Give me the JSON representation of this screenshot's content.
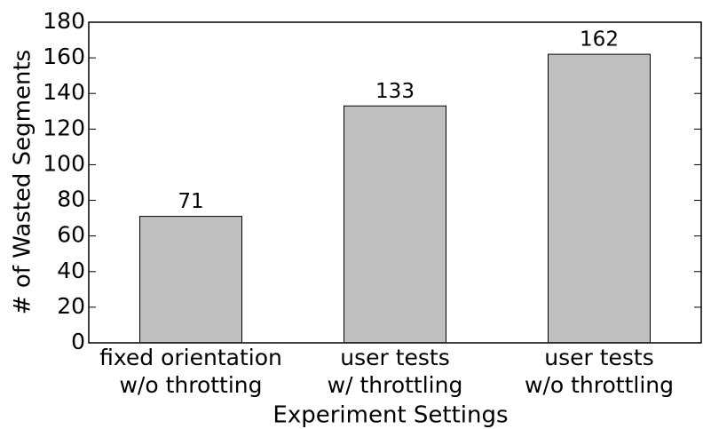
{
  "chart_data": {
    "type": "bar",
    "categories": [
      "fixed orientation\nw/o throtting",
      "user tests\nw/ throttling",
      "user tests\nw/o throttling"
    ],
    "values": [
      71,
      133,
      162
    ],
    "color": "#bfbfbf",
    "xlabel": "Experiment Settings",
    "ylabel": "# of Wasted Segments",
    "ylim": [
      0,
      180
    ],
    "yticks": [
      0,
      20,
      40,
      60,
      80,
      100,
      120,
      140,
      160,
      180
    ],
    "grid": false
  }
}
